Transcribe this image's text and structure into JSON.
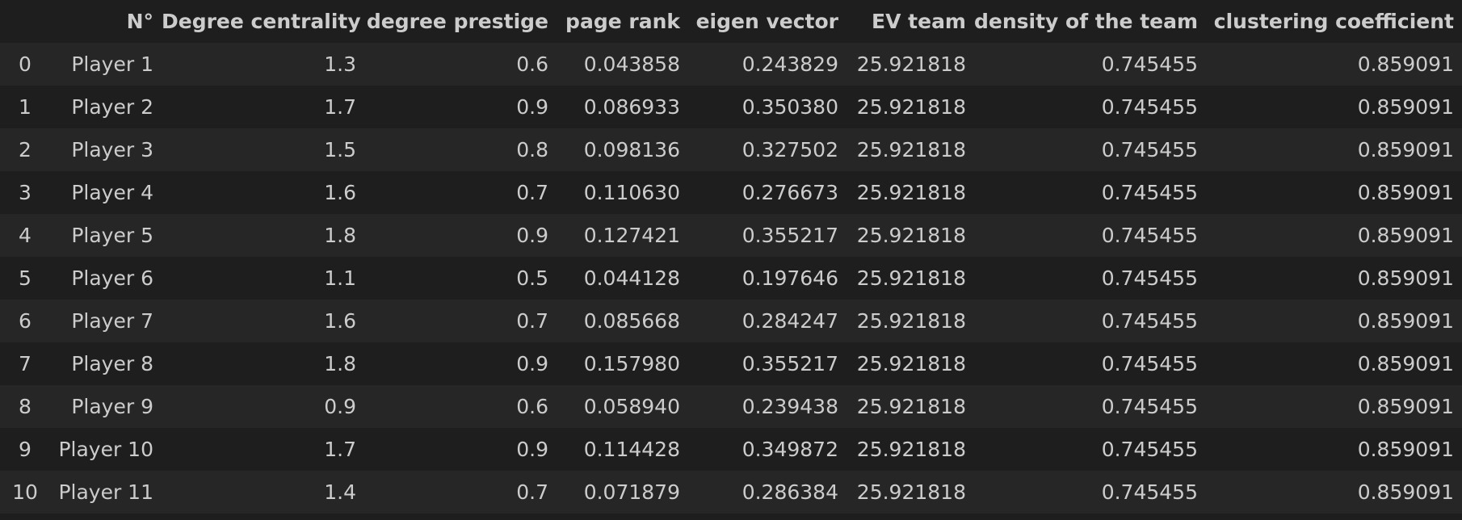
{
  "columns": [
    "",
    "N°",
    "Degree centrality",
    "degree prestige",
    "page rank",
    "eigen vector",
    "EV team",
    "density of the team",
    "clustering coefficient"
  ],
  "rows": [
    [
      "0",
      "Player 1",
      "1.3",
      "0.6",
      "0.043858",
      "0.243829",
      "25.921818",
      "0.745455",
      "0.859091"
    ],
    [
      "1",
      "Player 2",
      "1.7",
      "0.9",
      "0.086933",
      "0.350380",
      "25.921818",
      "0.745455",
      "0.859091"
    ],
    [
      "2",
      "Player 3",
      "1.5",
      "0.8",
      "0.098136",
      "0.327502",
      "25.921818",
      "0.745455",
      "0.859091"
    ],
    [
      "3",
      "Player 4",
      "1.6",
      "0.7",
      "0.110630",
      "0.276673",
      "25.921818",
      "0.745455",
      "0.859091"
    ],
    [
      "4",
      "Player 5",
      "1.8",
      "0.9",
      "0.127421",
      "0.355217",
      "25.921818",
      "0.745455",
      "0.859091"
    ],
    [
      "5",
      "Player 6",
      "1.1",
      "0.5",
      "0.044128",
      "0.197646",
      "25.921818",
      "0.745455",
      "0.859091"
    ],
    [
      "6",
      "Player 7",
      "1.6",
      "0.7",
      "0.085668",
      "0.284247",
      "25.921818",
      "0.745455",
      "0.859091"
    ],
    [
      "7",
      "Player 8",
      "1.8",
      "0.9",
      "0.157980",
      "0.355217",
      "25.921818",
      "0.745455",
      "0.859091"
    ],
    [
      "8",
      "Player 9",
      "0.9",
      "0.6",
      "0.058940",
      "0.239438",
      "25.921818",
      "0.745455",
      "0.859091"
    ],
    [
      "9",
      "Player 10",
      "1.7",
      "0.9",
      "0.114428",
      "0.349872",
      "25.921818",
      "0.745455",
      "0.859091"
    ],
    [
      "10",
      "Player 11",
      "1.4",
      "0.7",
      "0.071879",
      "0.286384",
      "25.921818",
      "0.745455",
      "0.859091"
    ]
  ]
}
